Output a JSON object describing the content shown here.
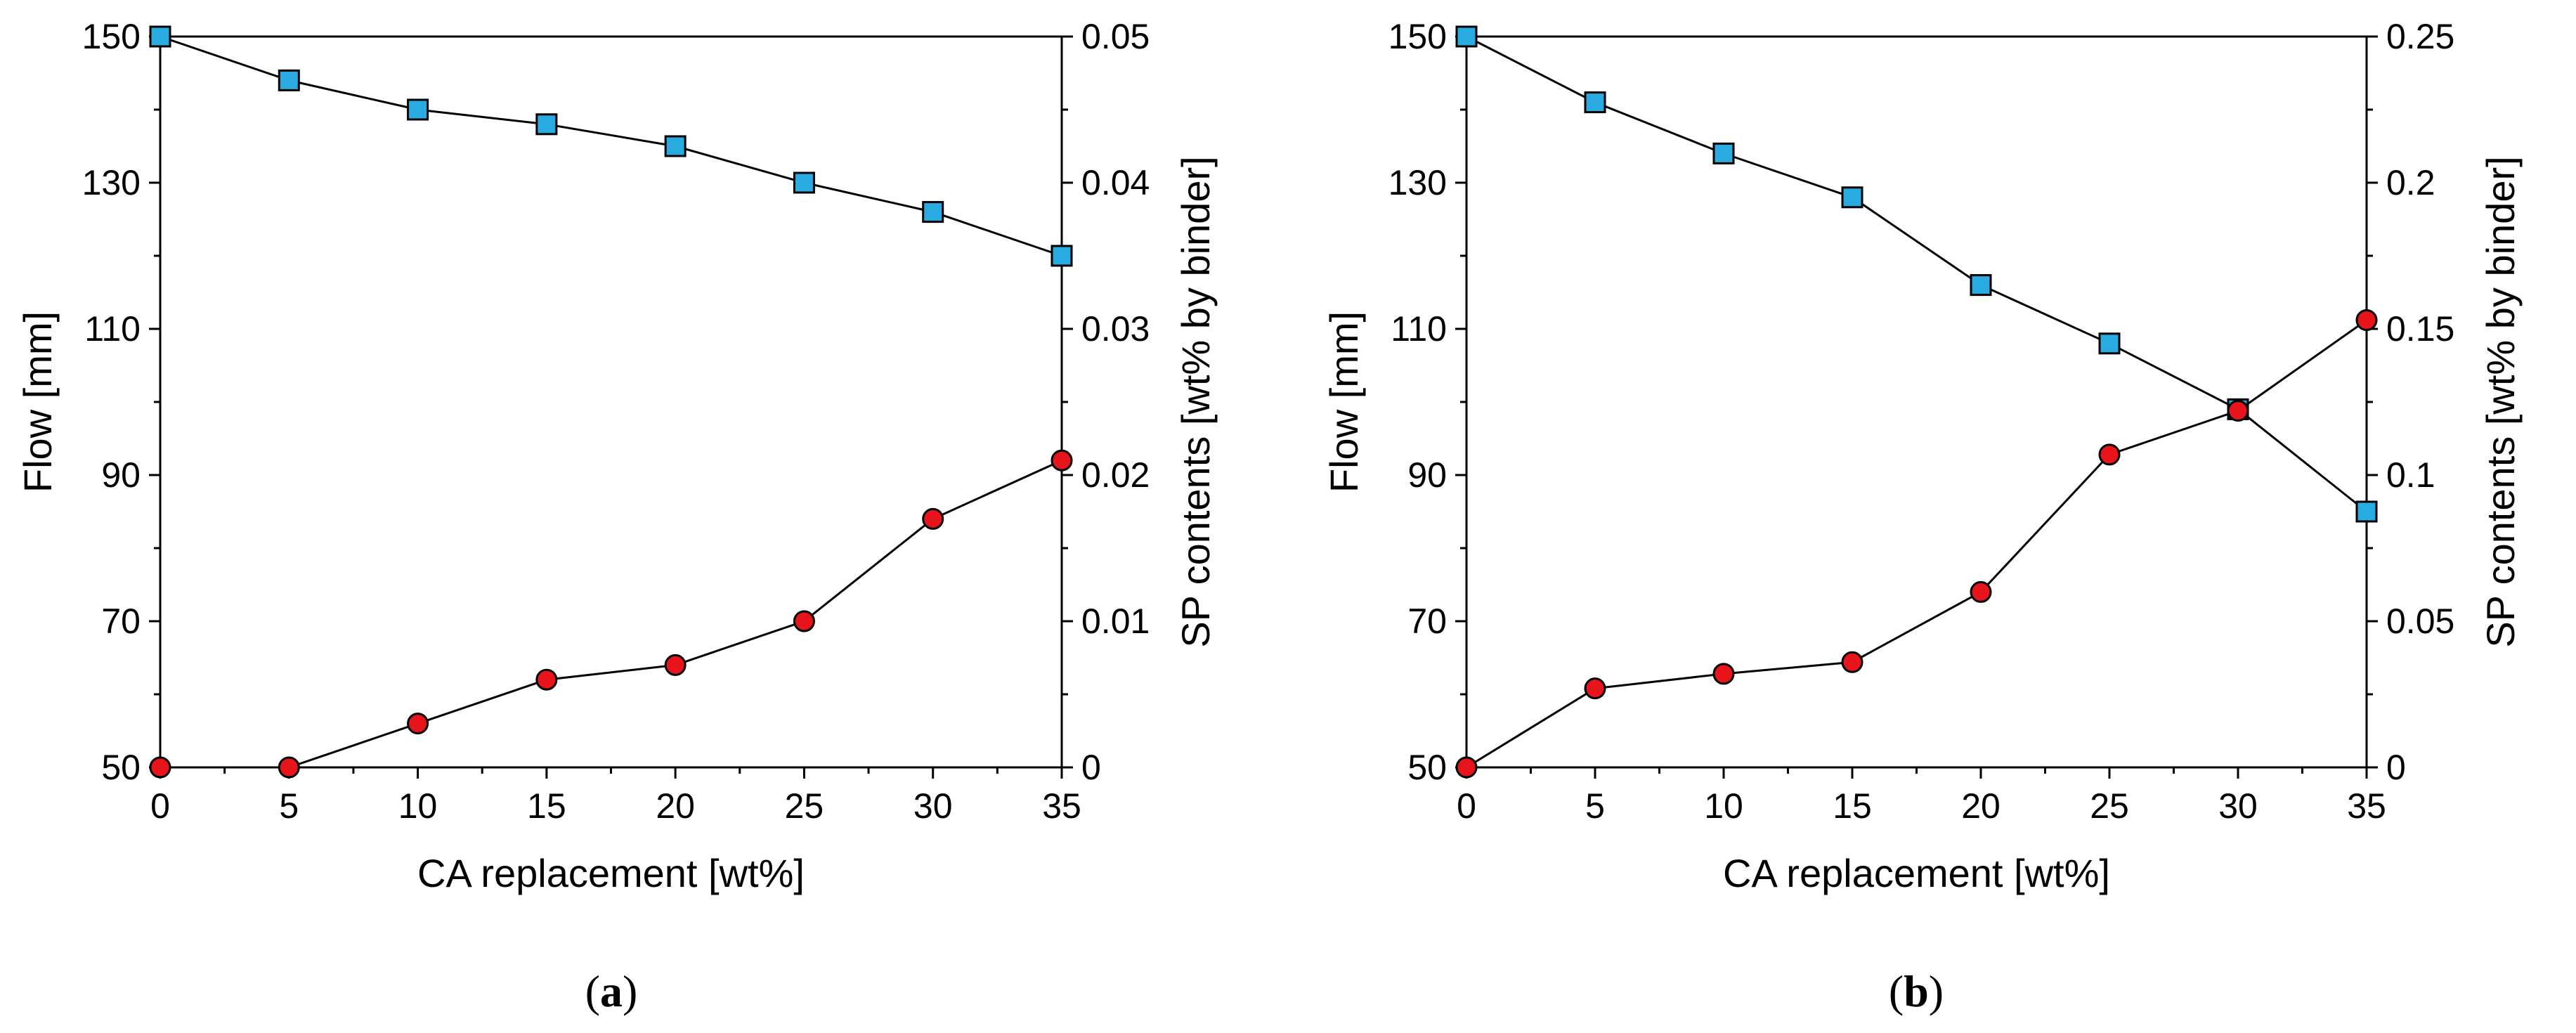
{
  "chart_data": [
    {
      "type": "line",
      "panel_label": "a",
      "categories": [
        0,
        5,
        10,
        15,
        20,
        25,
        30,
        35
      ],
      "xlabel": "CA replacement [wt%]",
      "xticks": [
        "0",
        "5",
        "10",
        "15",
        "20",
        "25",
        "30",
        "35"
      ],
      "xlim": [
        0,
        35
      ],
      "ylabel": "Flow [mm]",
      "ylim": [
        50,
        150
      ],
      "yticks": [
        "50",
        "70",
        "90",
        "110",
        "130",
        "150"
      ],
      "y2label": "SP contents [wt% by binder]",
      "y2lim": [
        0,
        0.05
      ],
      "y2ticks": [
        "0",
        "0.01",
        "0.02",
        "0.03",
        "0.04",
        "0.05"
      ],
      "series": [
        {
          "name": "Flow",
          "axis": "left",
          "marker": "square",
          "color": "#29abe2",
          "values": [
            150,
            144,
            140,
            138,
            135,
            130,
            126,
            120
          ]
        },
        {
          "name": "SP contents",
          "axis": "right",
          "marker": "circle",
          "color": "#e8141c",
          "values": [
            0,
            0,
            0.003,
            0.006,
            0.007,
            0.01,
            0.017,
            0.021
          ]
        }
      ]
    },
    {
      "type": "line",
      "panel_label": "b",
      "categories": [
        0,
        5,
        10,
        15,
        20,
        25,
        30,
        35
      ],
      "xlabel": "CA replacement [wt%]",
      "xticks": [
        "0",
        "5",
        "10",
        "15",
        "20",
        "25",
        "30",
        "35"
      ],
      "xlim": [
        0,
        35
      ],
      "ylabel": "Flow [mm]",
      "ylim": [
        50,
        150
      ],
      "yticks": [
        "50",
        "70",
        "90",
        "110",
        "130",
        "150"
      ],
      "y2label": "SP contents [wt% by binder]",
      "y2lim": [
        0,
        0.25
      ],
      "y2ticks": [
        "0",
        "0.05",
        "0.1",
        "0.15",
        "0.2",
        "0.25"
      ],
      "series": [
        {
          "name": "Flow",
          "axis": "left",
          "marker": "square",
          "color": "#29abe2",
          "values": [
            150,
            141,
            134,
            128,
            116,
            108,
            99,
            85
          ]
        },
        {
          "name": "SP contents",
          "axis": "right",
          "marker": "circle",
          "color": "#e8141c",
          "values": [
            0,
            0.027,
            0.032,
            0.036,
            0.06,
            0.107,
            0.122,
            0.153
          ]
        }
      ]
    }
  ]
}
